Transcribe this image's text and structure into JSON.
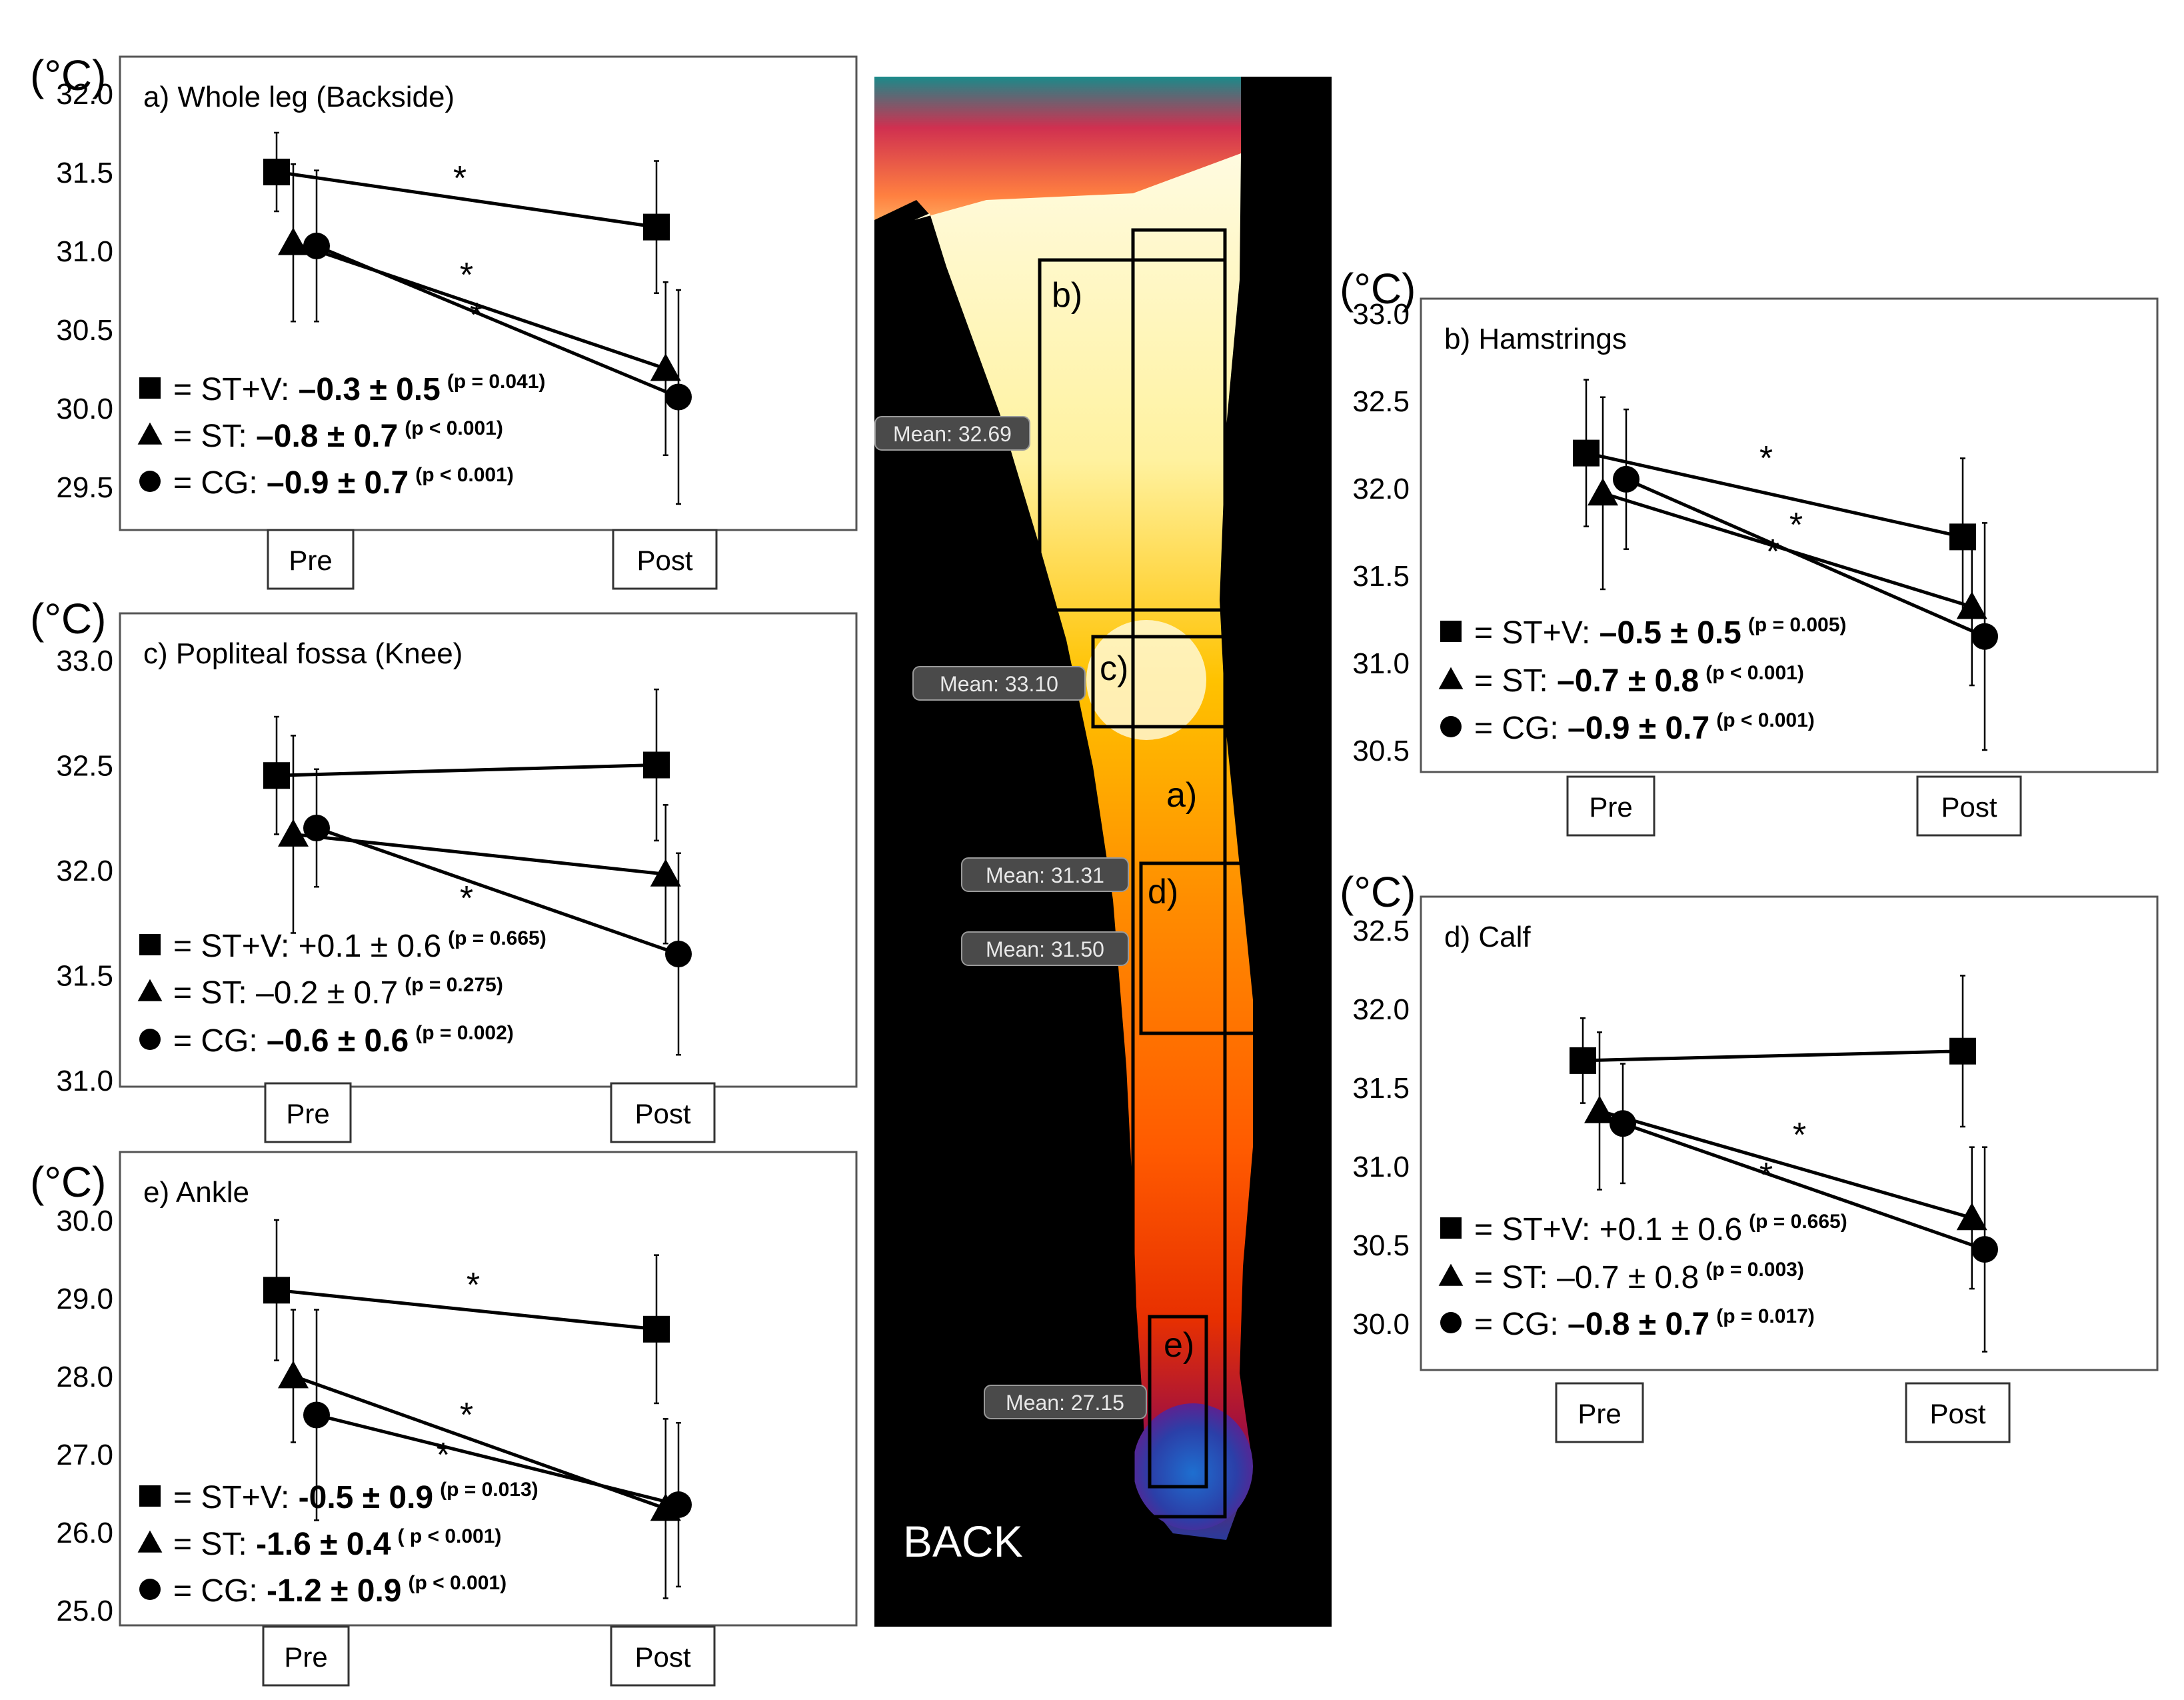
{
  "figure": {
    "markers": {
      "ST+V": "square",
      "ST": "triangle",
      "CG": "circle"
    },
    "panel_line_color": "#000000"
  },
  "chart_data": [
    {
      "id": "a",
      "type": "line",
      "title": "a) Whole leg (Backside)",
      "ylabel": "(°C)",
      "categories": [
        "Pre",
        "Post"
      ],
      "ylim": [
        29.5,
        32.0
      ],
      "step": 0.5,
      "decimals": 1,
      "series": [
        {
          "name": "ST+V",
          "values": [
            31.5,
            31.15
          ],
          "errors": [
            0.25,
            0.42
          ],
          "sig": true,
          "legend": {
            "label": "= ST+V:",
            "value": "–0.3 ± 0.5",
            "p": "(p = 0.041)",
            "bold": true
          }
        },
        {
          "name": "ST",
          "values": [
            31.05,
            30.25
          ],
          "errors": [
            0.5,
            0.55
          ],
          "sig": true,
          "legend": {
            "label": "= ST:",
            "value": "–0.8 ± 0.7",
            "p": "(p < 0.001)",
            "bold": true
          }
        },
        {
          "name": "CG",
          "values": [
            31.03,
            30.07
          ],
          "errors": [
            0.48,
            0.68
          ],
          "sig": true,
          "legend": {
            "label": "= CG:",
            "value": "–0.9 ± 0.7",
            "p": "(p < 0.001)",
            "bold": true
          }
        }
      ]
    },
    {
      "id": "c",
      "type": "line",
      "title": "c) Popliteal fossa (Knee)",
      "ylabel": "(°C)",
      "categories": [
        "Pre",
        "Post"
      ],
      "ylim": [
        31.0,
        33.0
      ],
      "step": 0.5,
      "decimals": 1,
      "series": [
        {
          "name": "ST+V",
          "values": [
            32.45,
            32.5
          ],
          "errors": [
            0.28,
            0.36
          ],
          "sig": false,
          "legend": {
            "label": "= ST+V:",
            "value": "+0.1 ± 0.6",
            "p": "(p = 0.665)",
            "bold": false
          }
        },
        {
          "name": "ST",
          "values": [
            32.17,
            31.98
          ],
          "errors": [
            0.47,
            0.33
          ],
          "sig": false,
          "legend": {
            "label": "= ST:",
            "value": "–0.2 ± 0.7",
            "p": "(p = 0.275)",
            "bold": false
          }
        },
        {
          "name": "CG",
          "values": [
            32.2,
            31.6
          ],
          "errors": [
            0.28,
            0.48
          ],
          "sig": true,
          "legend": {
            "label": "= CG:",
            "value": "–0.6 ± 0.6",
            "p": "(p = 0.002)",
            "bold": true
          }
        }
      ]
    },
    {
      "id": "e",
      "type": "line",
      "title": "e) Ankle",
      "ylabel": "(°C)",
      "categories": [
        "Pre",
        "Post"
      ],
      "ylim": [
        25.0,
        30.0
      ],
      "step": 1.0,
      "decimals": 1,
      "series": [
        {
          "name": "ST+V",
          "values": [
            29.1,
            28.6
          ],
          "errors": [
            0.9,
            0.95
          ],
          "sig": true,
          "legend": {
            "label": "= ST+V:",
            "value": "-0.5 ± 0.9",
            "p": "(p = 0.013)",
            "bold": true
          }
        },
        {
          "name": "ST",
          "values": [
            28.0,
            26.3
          ],
          "errors": [
            0.85,
            1.15
          ],
          "sig": true,
          "legend": {
            "label": "= ST:",
            "value": "-1.6 ± 0.4",
            "p": "( p < 0.001)",
            "bold": true
          }
        },
        {
          "name": "CG",
          "values": [
            27.5,
            26.35
          ],
          "errors": [
            1.35,
            1.05
          ],
          "sig": true,
          "legend": {
            "label": "= CG:",
            "value": "-1.2 ± 0.9",
            "p": "(p < 0.001)",
            "bold": true
          }
        }
      ]
    },
    {
      "id": "b",
      "type": "line",
      "title": "b) Hamstrings",
      "ylabel": "(°C)",
      "categories": [
        "Pre",
        "Post"
      ],
      "ylim": [
        30.5,
        33.0
      ],
      "step": 0.5,
      "decimals": 1,
      "series": [
        {
          "name": "ST+V",
          "values": [
            32.2,
            31.72
          ],
          "errors": [
            0.42,
            0.45
          ],
          "sig": true,
          "legend": {
            "label": "= ST+V:",
            "value": "–0.5 ± 0.5",
            "p": "(p = 0.005)",
            "bold": true
          }
        },
        {
          "name": "ST",
          "values": [
            31.97,
            31.32
          ],
          "errors": [
            0.55,
            0.45
          ],
          "sig": true,
          "legend": {
            "label": "= ST:",
            "value": "–0.7 ± 0.8",
            "p": "(p < 0.001)",
            "bold": true
          }
        },
        {
          "name": "CG",
          "values": [
            32.05,
            31.15
          ],
          "errors": [
            0.4,
            0.65
          ],
          "sig": true,
          "legend": {
            "label": "= CG:",
            "value": "–0.9 ± 0.7",
            "p": "(p < 0.001)",
            "bold": true
          }
        }
      ]
    },
    {
      "id": "d",
      "type": "line",
      "title": "d) Calf",
      "ylabel": "(°C)",
      "categories": [
        "Pre",
        "Post"
      ],
      "ylim": [
        30.0,
        32.5
      ],
      "step": 0.5,
      "decimals": 1,
      "series": [
        {
          "name": "ST+V",
          "values": [
            31.67,
            31.73
          ],
          "errors": [
            0.27,
            0.48
          ],
          "sig": false,
          "legend": {
            "label": "= ST+V:",
            "value": "+0.1 ± 0.6",
            "p": "(p = 0.665)",
            "bold": false
          }
        },
        {
          "name": "ST",
          "values": [
            31.35,
            30.67
          ],
          "errors": [
            0.5,
            0.45
          ],
          "sig": true,
          "legend": {
            "label": "= ST:",
            "value": "–0.7 ± 0.8",
            "p": "(p = 0.003)",
            "bold": false
          }
        },
        {
          "name": "CG",
          "values": [
            31.27,
            30.47
          ],
          "errors": [
            0.38,
            0.65
          ],
          "sig": true,
          "legend": {
            "label": "= CG:",
            "value": "–0.8 ± 0.7",
            "p": "(p = 0.017)",
            "bold": true
          }
        }
      ]
    }
  ],
  "thermal": {
    "view_label": "BACK",
    "regions": [
      {
        "id": "a",
        "label": "a)"
      },
      {
        "id": "b",
        "label": "b)"
      },
      {
        "id": "c",
        "label": "c)"
      },
      {
        "id": "d",
        "label": "d)"
      },
      {
        "id": "e",
        "label": "e)"
      }
    ],
    "mean_labels": [
      "Mean: 32.69",
      "Mean: 33.10",
      "Mean: 31.31",
      "Mean: 31.50",
      "Mean: 27.15"
    ]
  }
}
